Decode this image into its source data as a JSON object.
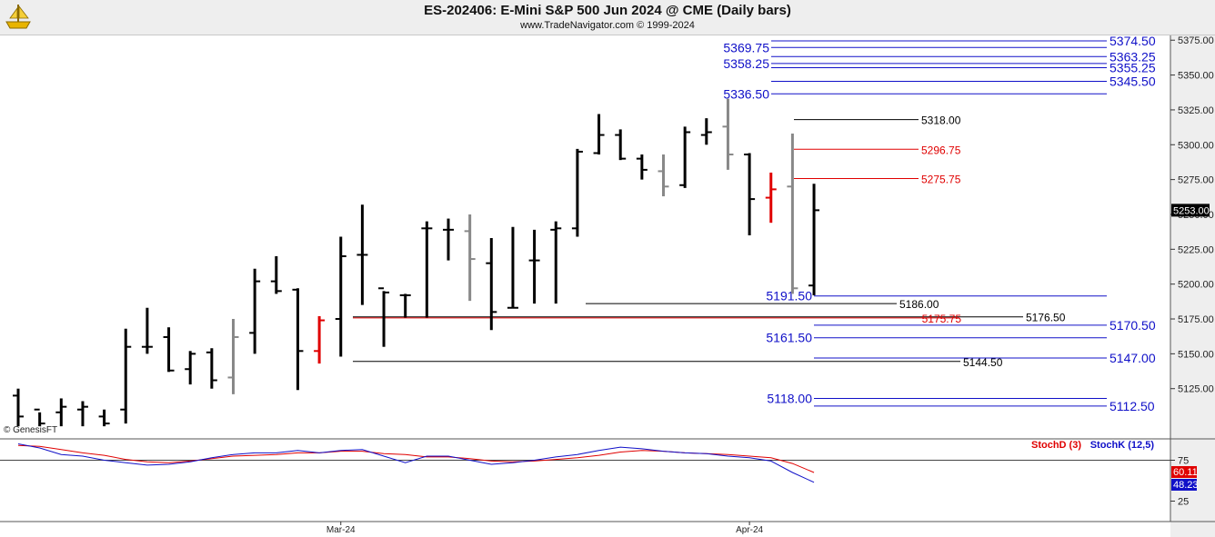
{
  "header": {
    "title": "ES-202406:  E-Mini S&P 500 Jun 2024 @ CME  (Daily bars)",
    "subtitle": "www.TradeNavigator.com © 1999-2024"
  },
  "watermark": "© GenesisFT",
  "colors": {
    "up_bar": "#000000",
    "neutral_bar": "#888888",
    "highlight_bar": "#e00000",
    "blue_level": "#1010c8",
    "red_level": "#e00000",
    "black_level": "#000000",
    "stoch_d": "#e00000",
    "stoch_k": "#1010c8"
  },
  "chart_data": {
    "type": "ohlc",
    "price_axis": {
      "min": 5100,
      "max": 5375,
      "ticks": [
        "5375.00",
        "5350.00",
        "5325.00",
        "5300.00",
        "5275.00",
        "5250.00",
        "5225.00",
        "5200.00",
        "5175.00",
        "5150.00",
        "5125.00"
      ],
      "last_price": "5253.00"
    },
    "x_labels": [
      {
        "text": "Mar-24",
        "bar": 15
      },
      {
        "text": "Apr-24",
        "bar": 34
      }
    ],
    "bars": [
      {
        "o": 5120,
        "h": 5125,
        "l": 5098,
        "c": 5105,
        "color": "black"
      },
      {
        "o": 5110,
        "h": 5108,
        "l": 5098,
        "c": 5100,
        "color": "black"
      },
      {
        "o": 5108,
        "h": 5118,
        "l": 5098,
        "c": 5112,
        "color": "black"
      },
      {
        "o": 5110,
        "h": 5116,
        "l": 5098,
        "c": 5112,
        "color": "black"
      },
      {
        "o": 5105,
        "h": 5110,
        "l": 5098,
        "c": 5100,
        "color": "black"
      },
      {
        "o": 5110,
        "h": 5168,
        "l": 5100,
        "c": 5155,
        "color": "black"
      },
      {
        "o": 5155,
        "h": 5183,
        "l": 5150,
        "c": 5155,
        "color": "black"
      },
      {
        "o": 5162,
        "h": 5169,
        "l": 5137,
        "c": 5138,
        "color": "black"
      },
      {
        "o": 5139,
        "h": 5152,
        "l": 5128,
        "c": 5150,
        "color": "black"
      },
      {
        "o": 5151,
        "h": 5154,
        "l": 5125,
        "c": 5131,
        "color": "black"
      },
      {
        "o": 5133,
        "h": 5175,
        "l": 5121,
        "c": 5162,
        "color": "gray"
      },
      {
        "o": 5165,
        "h": 5211,
        "l": 5150,
        "c": 5202,
        "color": "black"
      },
      {
        "o": 5202,
        "h": 5220,
        "l": 5193,
        "c": 5195,
        "color": "black"
      },
      {
        "o": 5196,
        "h": 5197,
        "l": 5124,
        "c": 5152,
        "color": "black"
      },
      {
        "o": 5152,
        "h": 5177,
        "l": 5143,
        "c": 5174,
        "color": "red"
      },
      {
        "o": 5175,
        "h": 5234,
        "l": 5148,
        "c": 5220,
        "color": "black"
      },
      {
        "o": 5221,
        "h": 5257,
        "l": 5185,
        "c": 5221,
        "color": "black"
      },
      {
        "o": 5197,
        "h": 5195,
        "l": 5155,
        "c": 5194,
        "color": "black"
      },
      {
        "o": 5192,
        "h": 5193,
        "l": 5176,
        "c": 5192,
        "color": "black"
      },
      {
        "o": 5240,
        "h": 5245,
        "l": 5176,
        "c": 5240,
        "color": "black"
      },
      {
        "o": 5239,
        "h": 5247,
        "l": 5217,
        "c": 5239,
        "color": "black"
      },
      {
        "o": 5238,
        "h": 5250,
        "l": 5188,
        "c": 5218,
        "color": "gray"
      },
      {
        "o": 5215,
        "h": 5233,
        "l": 5167,
        "c": 5180,
        "color": "black"
      },
      {
        "o": 5183,
        "h": 5241,
        "l": 5183,
        "c": 5183,
        "color": "black"
      },
      {
        "o": 5217,
        "h": 5239,
        "l": 5186,
        "c": 5217,
        "color": "black"
      },
      {
        "o": 5239,
        "h": 5245,
        "l": 5186,
        "c": 5240,
        "color": "black"
      },
      {
        "o": 5240,
        "h": 5297,
        "l": 5234,
        "c": 5295,
        "color": "black"
      },
      {
        "o": 5294,
        "h": 5322,
        "l": 5293,
        "c": 5307,
        "color": "black"
      },
      {
        "o": 5307,
        "h": 5311,
        "l": 5289,
        "c": 5290,
        "color": "black"
      },
      {
        "o": 5290,
        "h": 5293,
        "l": 5275,
        "c": 5282,
        "color": "black"
      },
      {
        "o": 5281,
        "h": 5293,
        "l": 5263,
        "c": 5270,
        "color": "gray"
      },
      {
        "o": 5271,
        "h": 5313,
        "l": 5269,
        "c": 5309,
        "color": "black"
      },
      {
        "o": 5307,
        "h": 5319,
        "l": 5300,
        "c": 5309,
        "color": "black"
      },
      {
        "o": 5313,
        "h": 5333,
        "l": 5282,
        "c": 5293,
        "color": "gray"
      },
      {
        "o": 5293,
        "h": 5294,
        "l": 5235,
        "c": 5261,
        "color": "black"
      },
      {
        "o": 5262,
        "h": 5280,
        "l": 5244,
        "c": 5268,
        "color": "red"
      },
      {
        "o": 5270,
        "h": 5308,
        "l": 5193,
        "c": 5197,
        "color": "gray"
      },
      {
        "o": 5199,
        "h": 5272,
        "l": 5192,
        "c": 5253,
        "color": "black"
      }
    ],
    "levels": [
      {
        "label": "5374.50",
        "value": 5374.5,
        "color": "blue",
        "side": "right",
        "x0": 848,
        "x1": 1217
      },
      {
        "label": "5369.75",
        "value": 5369.75,
        "color": "blue",
        "side": "left",
        "x0": 848,
        "x1": 1217
      },
      {
        "label": "5363.25",
        "value": 5363.25,
        "color": "blue",
        "side": "right",
        "x0": 848,
        "x1": 1217
      },
      {
        "label": "5358.25",
        "value": 5358.25,
        "color": "blue",
        "side": "left",
        "x0": 848,
        "x1": 1217
      },
      {
        "label": "5355.25",
        "value": 5355.25,
        "color": "blue",
        "side": "right",
        "x0": 848,
        "x1": 1217
      },
      {
        "label": "5345.50",
        "value": 5345.5,
        "color": "blue",
        "side": "right",
        "x0": 848,
        "x1": 1217
      },
      {
        "label": "5336.50",
        "value": 5336.5,
        "color": "blue",
        "side": "left",
        "x0": 848,
        "x1": 1217
      },
      {
        "label": "5318.00",
        "value": 5318,
        "color": "black",
        "side": "right_small",
        "x0": 873,
        "x1": 1010
      },
      {
        "label": "5296.75",
        "value": 5296.75,
        "color": "red",
        "side": "right_small",
        "x0": 873,
        "x1": 1010
      },
      {
        "label": "5275.75",
        "value": 5275.75,
        "color": "red",
        "side": "right_small",
        "x0": 873,
        "x1": 1010
      },
      {
        "label": "5191.50",
        "value": 5191.5,
        "color": "blue",
        "side": "left",
        "x0": 895,
        "x1": 1217
      },
      {
        "label": "5186.00",
        "value": 5186,
        "color": "black",
        "side": "right_small",
        "x0": 644,
        "x1": 986
      },
      {
        "label": "5176.50",
        "value": 5176.5,
        "color": "black",
        "side": "right_small",
        "x0": 388,
        "x1": 1125
      },
      {
        "label": "5175.75",
        "value": 5175.75,
        "color": "red",
        "side": "inline_small",
        "x0": 388,
        "x1": 1055
      },
      {
        "label": "5170.50",
        "value": 5170.5,
        "color": "blue",
        "side": "right",
        "x0": 895,
        "x1": 1217
      },
      {
        "label": "5161.50",
        "value": 5161.5,
        "color": "blue",
        "side": "left",
        "x0": 895,
        "x1": 1217
      },
      {
        "label": "5147.00",
        "value": 5147,
        "color": "blue",
        "side": "right",
        "x0": 895,
        "x1": 1217
      },
      {
        "label": "5144.50",
        "value": 5144.5,
        "color": "black",
        "side": "right_small",
        "x0": 388,
        "x1": 1056
      },
      {
        "label": "5118.00",
        "value": 5118,
        "color": "blue",
        "side": "left",
        "x0": 895,
        "x1": 1217
      },
      {
        "label": "5112.50",
        "value": 5112.5,
        "color": "blue",
        "side": "right",
        "x0": 895,
        "x1": 1217
      }
    ],
    "stochastic": {
      "legend_d": "StochD (3)",
      "legend_k": "StochK (12,5)",
      "ticks": [
        "75",
        "25"
      ],
      "overbought": 75,
      "last_d": "60.11",
      "last_k": "48.23",
      "d_values": [
        93,
        92,
        88,
        84,
        81,
        76,
        73,
        72,
        74,
        77,
        80,
        81,
        82,
        84,
        84,
        86,
        86,
        83,
        82,
        79,
        79,
        77,
        74,
        73,
        74,
        76,
        78,
        81,
        85,
        87,
        86,
        84,
        83,
        82,
        80,
        78,
        71,
        60
      ],
      "k_values": [
        95,
        90,
        82,
        80,
        75,
        72,
        69,
        70,
        73,
        78,
        82,
        84,
        84,
        87,
        84,
        87,
        88,
        80,
        72,
        80,
        80,
        75,
        70,
        72,
        75,
        79,
        82,
        87,
        91,
        89,
        86,
        84,
        83,
        80,
        78,
        74,
        60,
        48
      ]
    }
  }
}
